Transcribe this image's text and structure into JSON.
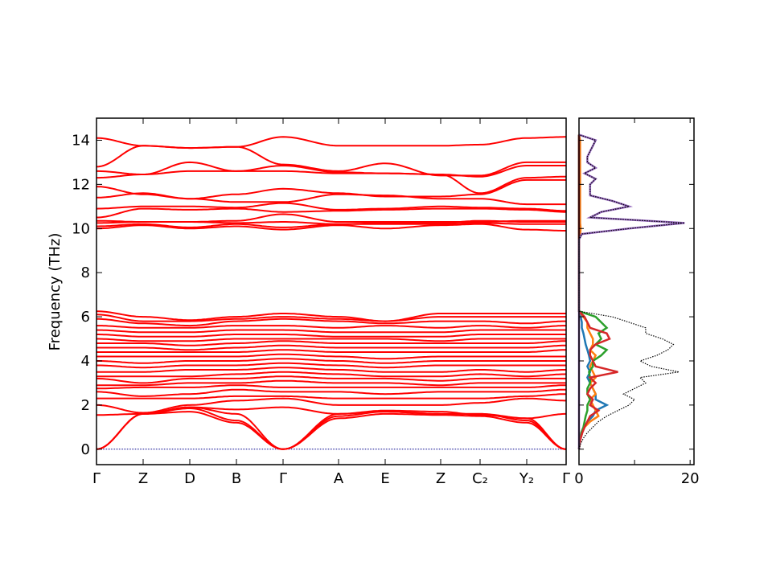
{
  "chart_data": [
    {
      "type": "line",
      "ylabel": "Frequency (THz)",
      "ylim": [
        -0.7,
        15
      ],
      "yticks": [
        0,
        2,
        4,
        6,
        8,
        10,
        12,
        14
      ],
      "kpoint_labels": [
        "Γ",
        "Z",
        "D",
        "B",
        "Γ",
        "A",
        "E",
        "Z",
        "C₂",
        "Y₂",
        "Γ"
      ],
      "band_color": "#ff0000",
      "zero_line_color": "#00008b",
      "bands": [
        [
          0,
          1.6,
          1.7,
          1.2,
          0,
          1.4,
          1.6,
          1.55,
          1.5,
          1.2,
          0
        ],
        [
          0,
          1.6,
          1.85,
          1.3,
          0,
          1.5,
          1.7,
          1.6,
          1.6,
          1.3,
          0
        ],
        [
          0,
          1.6,
          1.9,
          1.6,
          0,
          1.6,
          1.75,
          1.7,
          1.55,
          1.4,
          0
        ],
        [
          1.55,
          1.6,
          1.9,
          1.8,
          1.9,
          1.6,
          1.7,
          1.6,
          1.6,
          1.4,
          1.6
        ],
        [
          2.0,
          1.65,
          2.0,
          2.2,
          2.3,
          2.0,
          2.0,
          2.0,
          2.1,
          2.3,
          2.2
        ],
        [
          2.3,
          2.3,
          2.3,
          2.4,
          2.4,
          2.3,
          2.3,
          2.3,
          2.3,
          2.4,
          2.5
        ],
        [
          2.6,
          2.4,
          2.5,
          2.7,
          2.6,
          2.6,
          2.5,
          2.6,
          2.6,
          2.6,
          2.7
        ],
        [
          2.75,
          2.8,
          2.8,
          2.9,
          2.8,
          2.8,
          2.8,
          2.8,
          2.8,
          2.8,
          2.9
        ],
        [
          2.9,
          2.9,
          3.0,
          3.0,
          3.1,
          3.0,
          3.0,
          2.9,
          3.0,
          3.0,
          3.0
        ],
        [
          3.2,
          3.0,
          3.2,
          3.2,
          3.3,
          3.2,
          3.2,
          3.1,
          3.2,
          3.2,
          3.2
        ],
        [
          3.3,
          3.3,
          3.3,
          3.4,
          3.5,
          3.4,
          3.3,
          3.3,
          3.4,
          3.3,
          3.4
        ],
        [
          3.5,
          3.5,
          3.6,
          3.6,
          3.7,
          3.6,
          3.5,
          3.5,
          3.6,
          3.5,
          3.6
        ],
        [
          3.8,
          3.7,
          3.8,
          3.8,
          3.9,
          3.8,
          3.7,
          3.8,
          3.8,
          3.8,
          3.8
        ],
        [
          4.0,
          3.9,
          4.0,
          4.0,
          4.1,
          4.0,
          3.9,
          4.0,
          4.0,
          4.0,
          4.0
        ],
        [
          4.2,
          4.2,
          4.2,
          4.2,
          4.3,
          4.2,
          4.1,
          4.2,
          4.2,
          4.2,
          4.2
        ],
        [
          4.4,
          4.4,
          4.4,
          4.4,
          4.5,
          4.4,
          4.4,
          4.4,
          4.4,
          4.4,
          4.5
        ],
        [
          4.6,
          4.6,
          4.5,
          4.6,
          4.7,
          4.6,
          4.6,
          4.6,
          4.6,
          4.6,
          4.7
        ],
        [
          4.8,
          4.8,
          4.7,
          4.8,
          4.9,
          4.8,
          4.8,
          4.8,
          4.8,
          4.8,
          4.9
        ],
        [
          5.0,
          4.9,
          4.9,
          5.0,
          5.0,
          5.0,
          5.0,
          4.9,
          5.0,
          5.0,
          5.0
        ],
        [
          5.2,
          5.1,
          5.1,
          5.2,
          5.2,
          5.1,
          5.1,
          5.1,
          5.2,
          5.2,
          5.2
        ],
        [
          5.4,
          5.3,
          5.3,
          5.4,
          5.4,
          5.3,
          5.3,
          5.3,
          5.4,
          5.4,
          5.4
        ],
        [
          5.6,
          5.5,
          5.5,
          5.6,
          5.6,
          5.5,
          5.6,
          5.5,
          5.6,
          5.5,
          5.6
        ],
        [
          5.9,
          5.7,
          5.6,
          5.8,
          5.9,
          5.8,
          5.7,
          5.8,
          5.8,
          5.7,
          5.8
        ],
        [
          6.1,
          5.8,
          5.8,
          5.9,
          6.0,
          5.9,
          5.8,
          6.0,
          6.0,
          6.0,
          6.0
        ],
        [
          6.25,
          6.0,
          5.85,
          6.0,
          6.15,
          6.0,
          5.8,
          6.15,
          6.15,
          6.15,
          6.15
        ],
        [
          10.0,
          10.15,
          10.0,
          10.1,
          9.95,
          10.15,
          10.0,
          10.15,
          10.2,
          9.95,
          9.9
        ],
        [
          10.1,
          10.2,
          10.05,
          10.2,
          10.05,
          10.2,
          10.2,
          10.2,
          10.25,
          10.2,
          10.2
        ],
        [
          10.25,
          10.3,
          10.3,
          10.25,
          10.3,
          10.2,
          10.25,
          10.25,
          10.35,
          10.3,
          10.3
        ],
        [
          10.35,
          10.3,
          10.3,
          10.35,
          10.65,
          10.3,
          10.3,
          10.3,
          10.3,
          10.35,
          10.35
        ],
        [
          10.5,
          10.9,
          10.85,
          10.9,
          10.75,
          10.8,
          10.85,
          10.9,
          10.9,
          10.85,
          10.75
        ],
        [
          10.9,
          11.0,
          11.0,
          10.95,
          11.15,
          10.85,
          10.9,
          11.0,
          10.95,
          10.9,
          10.8
        ],
        [
          11.4,
          11.6,
          11.35,
          11.2,
          11.2,
          11.55,
          11.5,
          11.35,
          11.35,
          11.1,
          11.1
        ],
        [
          11.9,
          11.55,
          11.35,
          11.55,
          11.8,
          11.6,
          11.45,
          11.45,
          11.55,
          12.2,
          12.2
        ],
        [
          12.3,
          12.45,
          12.6,
          12.6,
          12.6,
          12.5,
          12.5,
          12.45,
          11.6,
          12.3,
          12.35
        ],
        [
          12.6,
          12.45,
          13.0,
          12.6,
          12.85,
          12.55,
          12.5,
          12.45,
          12.35,
          12.85,
          12.85
        ],
        [
          12.8,
          13.75,
          13.65,
          13.7,
          12.9,
          12.6,
          12.95,
          12.4,
          12.4,
          13.0,
          13.0
        ],
        [
          14.1,
          13.75,
          13.65,
          13.7,
          14.15,
          13.75,
          13.75,
          13.75,
          13.8,
          14.1,
          14.15
        ]
      ]
    },
    {
      "type": "line",
      "xlim": [
        0,
        20.7
      ],
      "ylim": [
        -0.7,
        15
      ],
      "xtick_labels": [
        "0",
        "20"
      ],
      "xticks": [
        0,
        10,
        20
      ],
      "freq": [
        0,
        0.25,
        0.5,
        0.75,
        1,
        1.25,
        1.5,
        1.75,
        2,
        2.25,
        2.5,
        2.75,
        3,
        3.25,
        3.5,
        3.75,
        4,
        4.25,
        4.5,
        4.75,
        5,
        5.25,
        5.5,
        5.75,
        6,
        6.25,
        6.5,
        6.75,
        7,
        7.25,
        7.5,
        7.75,
        8,
        8.25,
        8.5,
        8.75,
        9,
        9.25,
        9.5,
        9.75,
        10,
        10.25,
        10.5,
        10.75,
        11,
        11.25,
        11.5,
        11.75,
        12,
        12.25,
        12.5,
        12.75,
        13,
        13.25,
        13.5,
        13.75,
        14,
        14.25
      ],
      "series": [
        {
          "color": "#1f77b4",
          "style": "solid",
          "values": [
            0,
            0.1,
            0.3,
            0.6,
            1,
            1.5,
            2.5,
            3,
            5,
            3,
            3,
            2.5,
            2,
            1.5,
            2,
            1.5,
            2,
            1.8,
            1.5,
            1.2,
            1,
            0.8,
            0.5,
            0.5,
            0.3,
            0,
            0,
            0,
            0,
            0,
            0,
            0,
            0,
            0,
            0,
            0,
            0,
            0,
            0,
            0,
            0,
            0,
            0,
            0,
            0,
            0,
            0,
            0,
            0,
            0,
            0,
            0,
            0,
            0,
            0,
            0,
            0,
            0
          ]
        },
        {
          "color": "#ff7f0e",
          "style": "solid",
          "values": [
            0,
            0.1,
            0.3,
            0.6,
            1,
            2,
            3.5,
            3,
            2.5,
            2,
            3,
            2.5,
            2,
            3,
            2.5,
            2,
            2.5,
            3,
            2,
            2.5,
            2.5,
            2,
            1.5,
            1.5,
            0.8,
            0,
            0,
            0,
            0,
            0,
            0,
            0,
            0,
            0,
            0,
            0,
            0,
            0,
            0,
            0.2,
            0.3,
            0.2,
            0.2,
            0.2,
            0.2,
            0.2,
            0.2,
            0.2,
            0.2,
            0.2,
            0.2,
            0.2,
            0.2,
            0.2,
            0.2,
            0.2,
            0.2,
            0
          ]
        },
        {
          "color": "#2ca02c",
          "style": "solid",
          "values": [
            0,
            0.1,
            0.2,
            0.4,
            0.8,
            1,
            1.2,
            1.5,
            1.5,
            2,
            1.5,
            1.5,
            2,
            2,
            1.8,
            2.5,
            2.5,
            4,
            5,
            3,
            4,
            3.5,
            5,
            4,
            3,
            0,
            0,
            0,
            0,
            0,
            0,
            0,
            0,
            0,
            0,
            0,
            0,
            0,
            0,
            0,
            0,
            0,
            0,
            0,
            0,
            0,
            0,
            0,
            0,
            0,
            0,
            0,
            0,
            0,
            0,
            0,
            0,
            0
          ]
        },
        {
          "color": "#d62728",
          "style": "solid",
          "values": [
            0,
            0.1,
            0.3,
            0.6,
            1,
            1.5,
            2,
            3.5,
            2,
            2.5,
            1.5,
            2,
            3,
            2,
            7,
            3,
            2.5,
            2,
            2,
            3,
            5.5,
            5,
            2,
            1.5,
            1,
            0,
            0,
            0,
            0,
            0,
            0,
            0,
            0,
            0,
            0,
            0,
            0,
            0,
            0,
            0,
            0,
            0,
            0,
            0,
            0,
            0,
            0,
            0,
            0,
            0,
            0,
            0,
            0,
            0,
            0,
            0,
            0,
            0
          ]
        },
        {
          "color": "#9467bd",
          "style": "solid",
          "values": [
            0,
            0,
            0,
            0,
            0,
            0,
            0,
            0,
            0,
            0,
            0,
            0,
            0,
            0,
            0,
            0,
            0,
            0,
            0,
            0,
            0,
            0,
            0,
            0,
            0,
            0,
            0,
            0,
            0,
            0,
            0,
            0,
            0,
            0,
            0,
            0,
            0,
            0,
            0,
            0.5,
            9,
            19,
            2,
            4,
            9,
            6,
            2,
            2,
            2,
            3,
            1,
            3,
            1.5,
            1.5,
            2,
            2.5,
            3,
            0
          ]
        },
        {
          "color": "#000000",
          "style": "dotted",
          "values": [
            0,
            0.3,
            0.8,
            1.5,
            2.5,
            3.5,
            5,
            7,
            9,
            10,
            8,
            10,
            12,
            11,
            18,
            13,
            11,
            14,
            16,
            17,
            15,
            12,
            12,
            9,
            6,
            0,
            0,
            0,
            0,
            0,
            0,
            0,
            0,
            0,
            0,
            0,
            0,
            0,
            0,
            0.5,
            9,
            19,
            2,
            4,
            9,
            6,
            2,
            2,
            2,
            3,
            1,
            3,
            1.5,
            1.5,
            2,
            2.5,
            3,
            0
          ]
        }
      ]
    }
  ]
}
